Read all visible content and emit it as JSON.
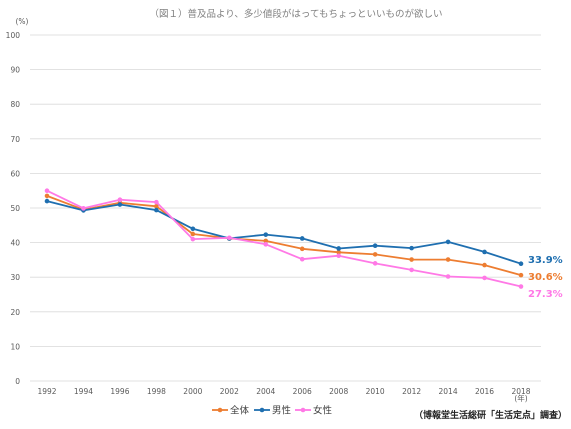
{
  "chart_data": {
    "type": "line",
    "title": "（図１）普及品より、多少値段がはってもちょっといいものが欲しい",
    "y_unit_label": "(%)",
    "x_unit_label": "(年)",
    "ylim": [
      0,
      100
    ],
    "y_ticks": [
      "0",
      "10",
      "20",
      "30",
      "40",
      "50",
      "60",
      "70",
      "80",
      "90",
      "100"
    ],
    "categories": [
      "1992",
      "1994",
      "1996",
      "1998",
      "2000",
      "2002",
      "2004",
      "2006",
      "2008",
      "2010",
      "2012",
      "2014",
      "2016",
      "2018"
    ],
    "grid": true,
    "legend_position": "bottom",
    "series": [
      {
        "name": "全体",
        "color": "#ed7d31",
        "values": [
          53.5,
          49.5,
          51.5,
          50.5,
          42.5,
          41.2,
          40.5,
          38.2,
          37.2,
          36.6,
          35.1,
          35.1,
          33.5,
          30.6
        ],
        "end_label": "30.6%"
      },
      {
        "name": "男性",
        "color": "#1f6fb0",
        "values": [
          52.0,
          49.3,
          51.0,
          49.4,
          44.0,
          41.2,
          42.3,
          41.2,
          38.3,
          39.1,
          38.4,
          40.2,
          37.3,
          33.9
        ],
        "end_label": "33.9%"
      },
      {
        "name": "女性",
        "color": "#ff79e6",
        "values": [
          55.0,
          49.9,
          52.4,
          51.7,
          41.0,
          41.4,
          39.5,
          35.2,
          36.2,
          34.0,
          32.1,
          30.2,
          29.8,
          27.3
        ],
        "end_label": "27.3%"
      }
    ],
    "source": "（博報堂生活総研「生活定点」調査）"
  }
}
